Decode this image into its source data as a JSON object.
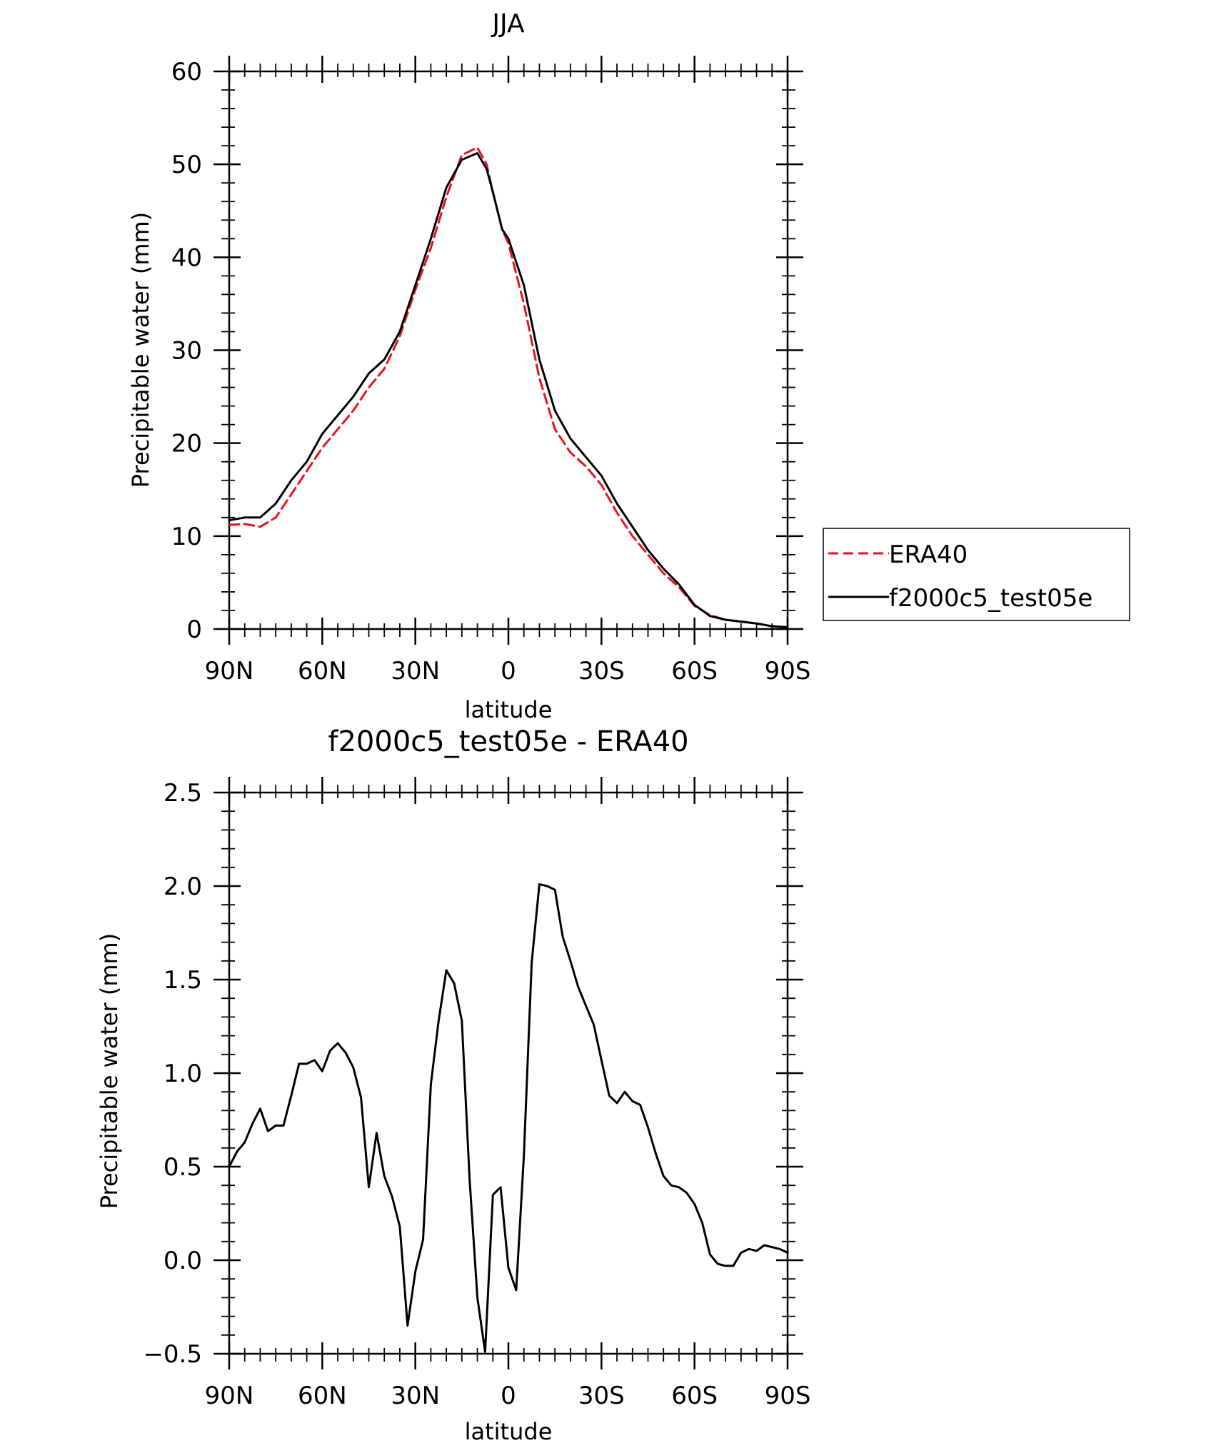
{
  "chart_data": [
    {
      "type": "line",
      "title": "JJA",
      "xlabel": "latitude",
      "ylabel": "Precipitable water (mm)",
      "xlim": [
        90,
        -90
      ],
      "ylim": [
        0,
        60
      ],
      "yticks": [
        "0",
        "10",
        "20",
        "30",
        "40",
        "50",
        "60"
      ],
      "xticks": [
        "90N",
        "60N",
        "30N",
        "0",
        "30S",
        "60S",
        "90S"
      ],
      "grid": false,
      "legend_position": "right",
      "series": [
        {
          "name": "ERA40",
          "color": "#e8141c",
          "dash": "dashed",
          "x": [
            90,
            85,
            80,
            75,
            70,
            65,
            60,
            55,
            50,
            45,
            40,
            35,
            30,
            25,
            20,
            15,
            10,
            7,
            5,
            2,
            0,
            -5,
            -10,
            -15,
            -20,
            -25,
            -30,
            -35,
            -40,
            -45,
            -50,
            -55,
            -60,
            -65,
            -70,
            -75,
            -80,
            -85,
            -90
          ],
          "y": [
            11.2,
            11.3,
            11.0,
            12.0,
            14.5,
            17.0,
            19.5,
            21.5,
            23.5,
            26.0,
            28.0,
            31.5,
            36.5,
            41.0,
            46.5,
            51.0,
            51.8,
            50.0,
            47.0,
            43.0,
            41.5,
            35.0,
            27.0,
            21.5,
            19.0,
            17.5,
            15.5,
            12.5,
            10.0,
            8.0,
            6.0,
            4.5,
            2.5,
            1.5,
            1.0,
            0.8,
            0.6,
            0.3,
            0.2
          ]
        },
        {
          "name": "f2000c5_test05e",
          "color": "#000000",
          "dash": "solid",
          "x": [
            90,
            85,
            80,
            75,
            70,
            65,
            60,
            55,
            50,
            45,
            40,
            35,
            30,
            25,
            20,
            15,
            10,
            7,
            5,
            2,
            0,
            -5,
            -10,
            -15,
            -20,
            -25,
            -30,
            -35,
            -40,
            -45,
            -50,
            -55,
            -60,
            -65,
            -70,
            -75,
            -80,
            -85,
            -90
          ],
          "y": [
            11.7,
            12.0,
            12.0,
            13.5,
            16.0,
            18.0,
            21.0,
            23.0,
            25.0,
            27.5,
            29.0,
            32.0,
            37.0,
            42.0,
            47.5,
            50.5,
            51.2,
            49.5,
            47.0,
            43.0,
            42.0,
            37.0,
            29.0,
            23.5,
            20.5,
            18.5,
            16.5,
            13.5,
            11.0,
            8.5,
            6.5,
            4.8,
            2.6,
            1.4,
            1.0,
            0.8,
            0.6,
            0.3,
            0.2
          ]
        }
      ]
    },
    {
      "type": "line",
      "title": "f2000c5_test05e - ERA40",
      "xlabel": "latitude",
      "ylabel": "Precipitable water (mm)",
      "xlim": [
        90,
        -90
      ],
      "ylim": [
        -0.5,
        2.5
      ],
      "yticks": [
        "−0.5",
        "0.0",
        "0.5",
        "1.0",
        "1.5",
        "2.0",
        "2.5"
      ],
      "xticks": [
        "90N",
        "60N",
        "30N",
        "0",
        "30S",
        "60S",
        "90S"
      ],
      "grid": false,
      "series": [
        {
          "name": "",
          "color": "#000000",
          "dash": "solid",
          "x": [
            90,
            87.5,
            85,
            82.5,
            80,
            77.5,
            75,
            72.5,
            70,
            67.5,
            65,
            62.5,
            60,
            57.5,
            55,
            52.5,
            50,
            47.5,
            45,
            42.5,
            40,
            37.5,
            35,
            32.5,
            30,
            27.5,
            25,
            22.5,
            20,
            17.5,
            15,
            12.5,
            10,
            7.5,
            5,
            2.5,
            0,
            -2.5,
            -5,
            -7.5,
            -10,
            -12.5,
            -15,
            -17.5,
            -20,
            -22.5,
            -25,
            -27.5,
            -30,
            -32.5,
            -35,
            -37.5,
            -40,
            -42.5,
            -45,
            -47.5,
            -50,
            -52.5,
            -55,
            -57.5,
            -60,
            -62.5,
            -65,
            -67.5,
            -70,
            -72.5,
            -75,
            -77.5,
            -80,
            -82.5,
            -85,
            -87.5,
            -90
          ],
          "y": [
            0.5,
            0.58,
            0.63,
            0.73,
            0.81,
            0.69,
            0.72,
            0.72,
            0.88,
            1.05,
            1.05,
            1.07,
            1.01,
            1.12,
            1.16,
            1.11,
            1.03,
            0.87,
            0.39,
            0.68,
            0.45,
            0.34,
            0.18,
            -0.35,
            -0.06,
            0.11,
            0.94,
            1.28,
            1.55,
            1.48,
            1.28,
            0.43,
            -0.2,
            -0.49,
            0.35,
            0.39,
            -0.04,
            -0.16,
            0.56,
            1.59,
            2.01,
            2.0,
            1.98,
            1.73,
            1.6,
            1.46,
            1.36,
            1.26,
            1.07,
            0.88,
            0.84,
            0.9,
            0.85,
            0.83,
            0.71,
            0.57,
            0.45,
            0.4,
            0.39,
            0.36,
            0.3,
            0.2,
            0.03,
            -0.02,
            -0.03,
            -0.03,
            0.04,
            0.06,
            0.05,
            0.08,
            0.07,
            0.06,
            0.04
          ]
        }
      ]
    }
  ]
}
